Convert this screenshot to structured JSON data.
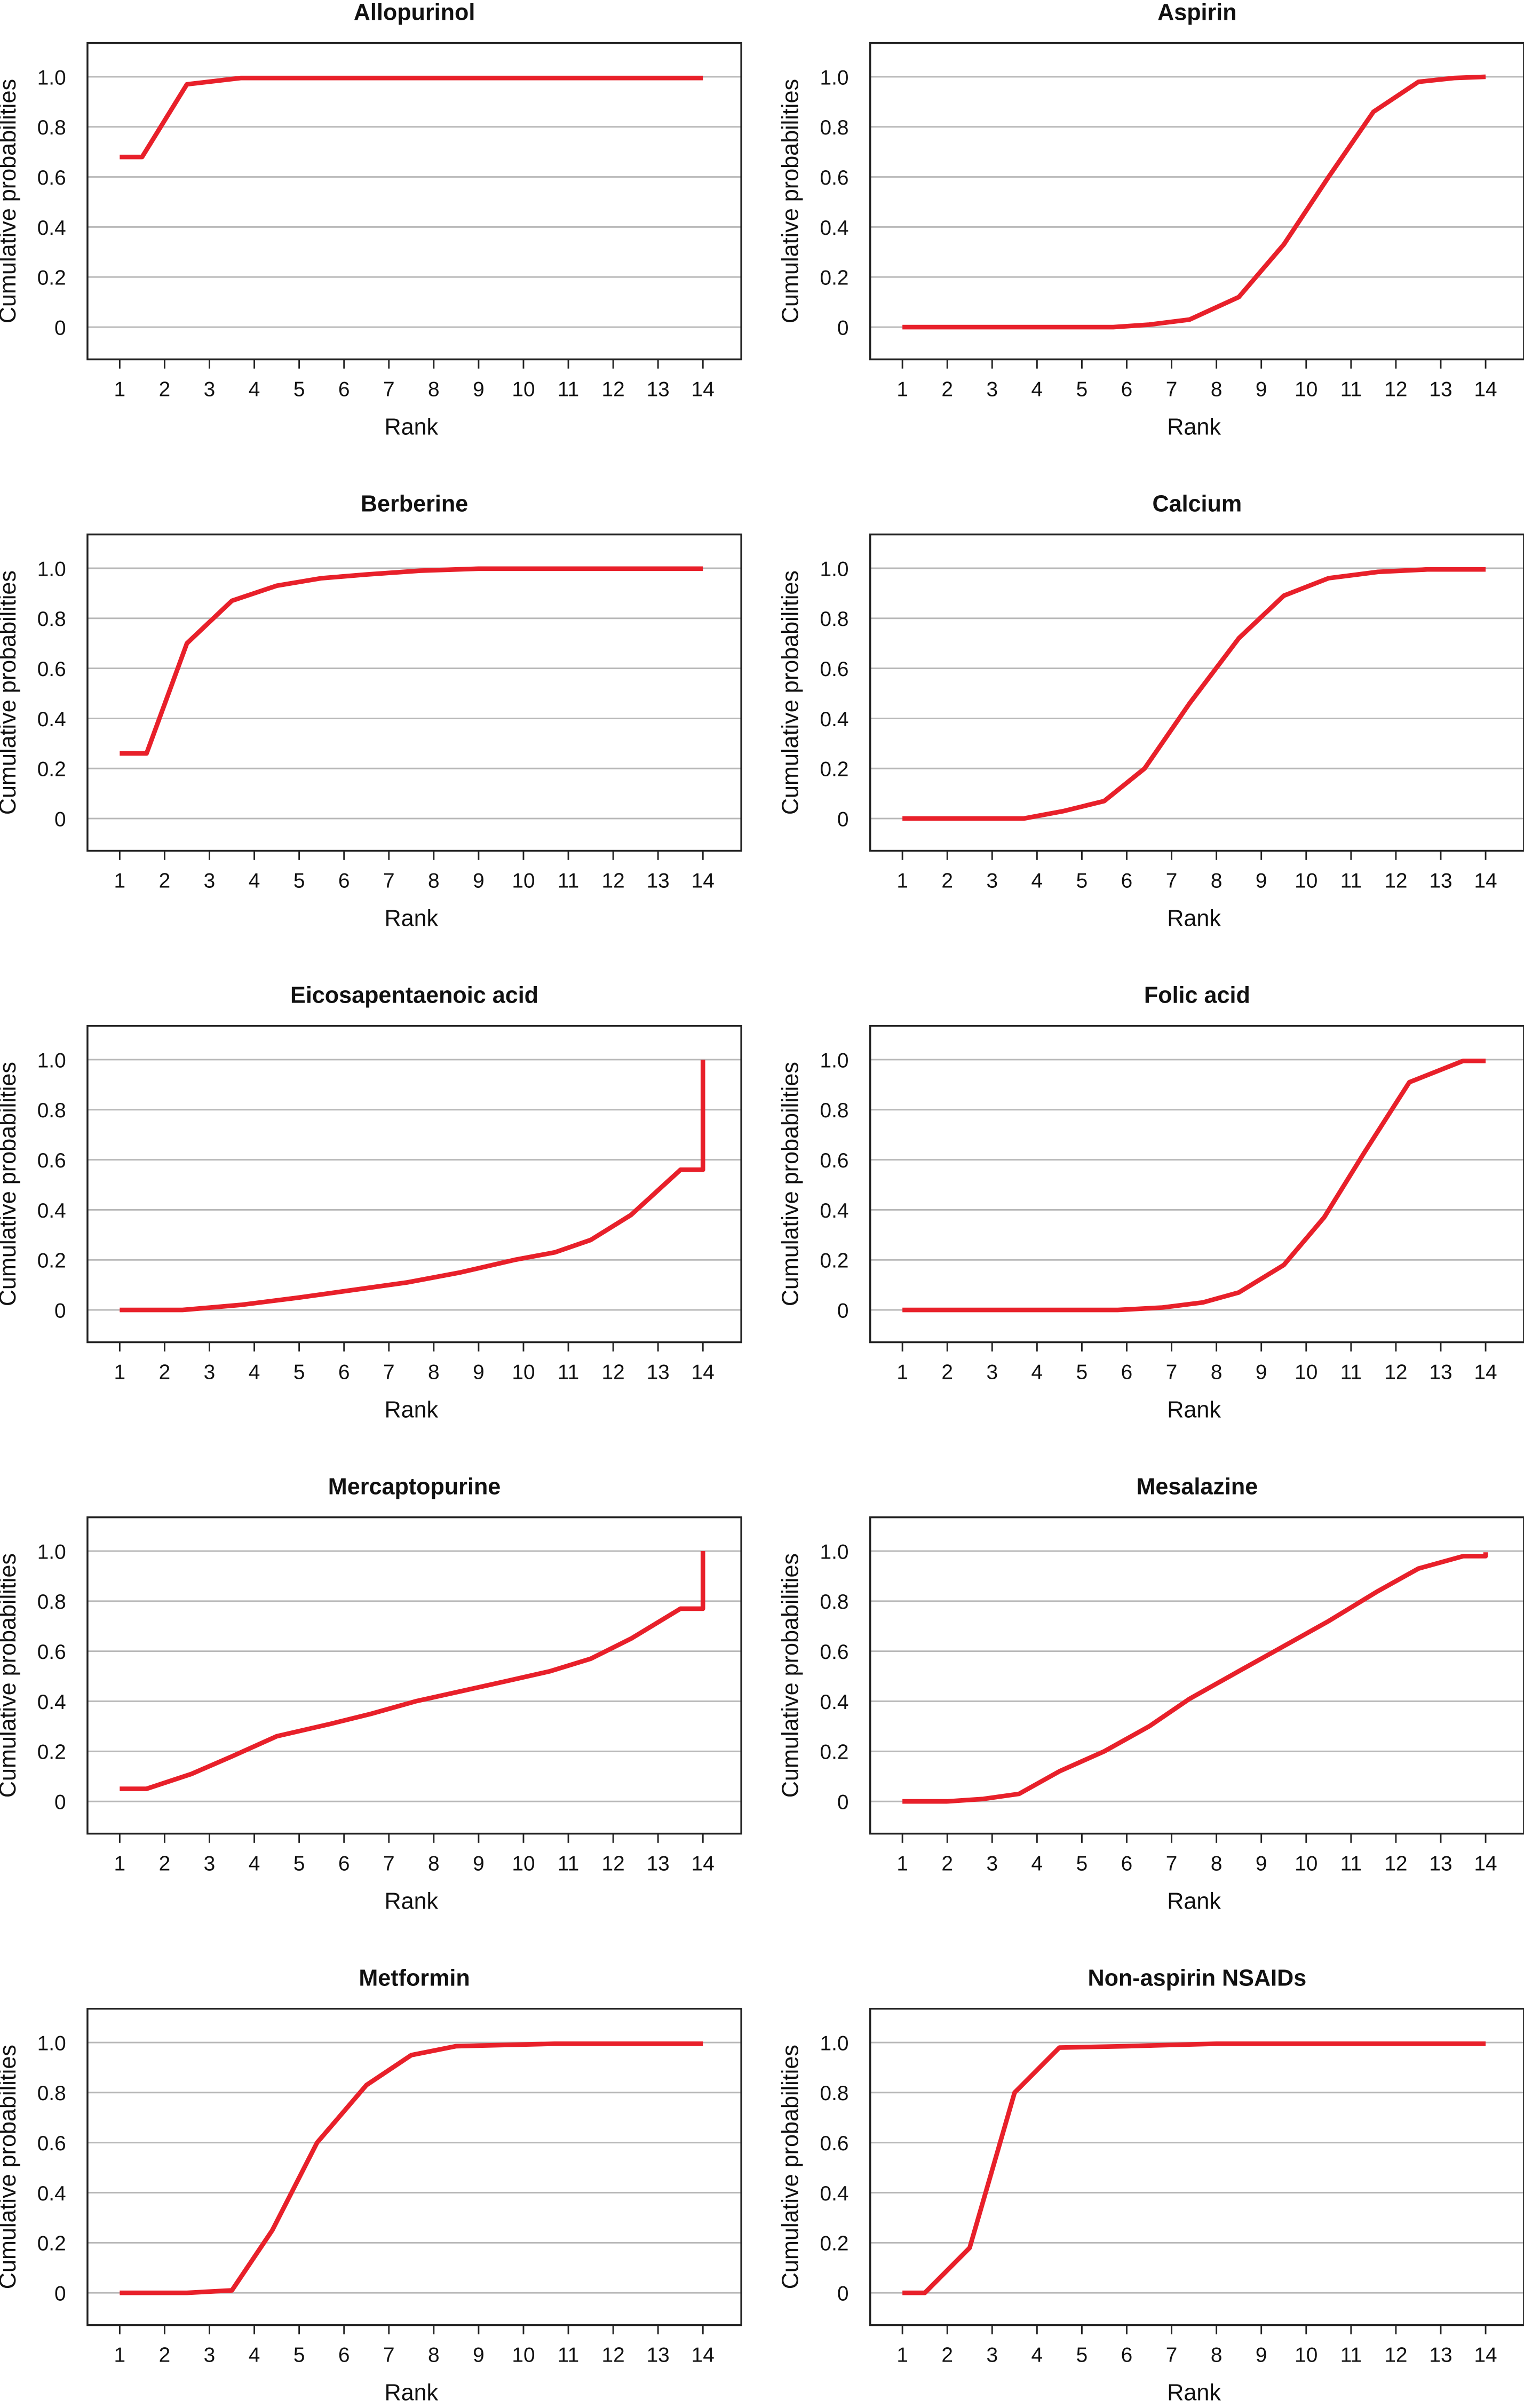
{
  "figure": {
    "x_axis_label": "Rank",
    "y_axis_label": "Cumulative probabilities",
    "line_color": "#e8202a",
    "grid_color": "#b8b8b8",
    "frame_color": "#222222"
  },
  "chart_data": [
    {
      "type": "line",
      "title": "Allopurinol",
      "xlabel": "Rank",
      "ylabel": "Cumulative probabilities",
      "xlim": [
        1,
        14
      ],
      "ylim": [
        0,
        1
      ],
      "x_ticks": [
        "1",
        "2",
        "3",
        "4",
        "5",
        "6",
        "7",
        "8",
        "9",
        "10",
        "11",
        "12",
        "13",
        "14"
      ],
      "y_ticks": [
        "0",
        "0.2",
        "0.4",
        "0.6",
        "0.8",
        "1.0"
      ],
      "grid": "horizontal",
      "series": [
        {
          "x": [
            1,
            1.5,
            2.5,
            3.7,
            14
          ],
          "y": [
            0.68,
            0.68,
            0.97,
            0.995,
            0.995
          ]
        }
      ]
    },
    {
      "type": "line",
      "title": "Aspirin",
      "xlabel": "Rank",
      "ylabel": "Cumulative probabilities",
      "xlim": [
        1,
        14
      ],
      "ylim": [
        0,
        1
      ],
      "x_ticks": [
        "1",
        "2",
        "3",
        "4",
        "5",
        "6",
        "7",
        "8",
        "9",
        "10",
        "11",
        "12",
        "13",
        "14"
      ],
      "y_ticks": [
        "0",
        "0.2",
        "0.4",
        "0.6",
        "0.8",
        "1.0"
      ],
      "grid": "horizontal",
      "series": [
        {
          "x": [
            1,
            5.7,
            6.5,
            7.4,
            8.5,
            9.5,
            10.5,
            11.5,
            12.5,
            13.3,
            14
          ],
          "y": [
            0,
            0,
            0.01,
            0.03,
            0.12,
            0.33,
            0.6,
            0.86,
            0.98,
            0.995,
            1.0
          ]
        }
      ]
    },
    {
      "type": "line",
      "title": "Berberine",
      "xlabel": "Rank",
      "ylabel": "Cumulative probabilities",
      "xlim": [
        1,
        14
      ],
      "ylim": [
        0,
        1
      ],
      "x_ticks": [
        "1",
        "2",
        "3",
        "4",
        "5",
        "6",
        "7",
        "8",
        "9",
        "10",
        "11",
        "12",
        "13",
        "14"
      ],
      "y_ticks": [
        "0",
        "0.2",
        "0.4",
        "0.6",
        "0.8",
        "1.0"
      ],
      "grid": "horizontal",
      "series": [
        {
          "x": [
            1,
            1.6,
            2.5,
            3.5,
            4.5,
            5.5,
            6.5,
            7.7,
            9,
            14
          ],
          "y": [
            0.26,
            0.26,
            0.7,
            0.87,
            0.93,
            0.96,
            0.975,
            0.99,
            0.998,
            0.998
          ]
        }
      ]
    },
    {
      "type": "line",
      "title": "Calcium",
      "xlabel": "Rank",
      "ylabel": "Cumulative probabilities",
      "xlim": [
        1,
        14
      ],
      "ylim": [
        0,
        1
      ],
      "x_ticks": [
        "1",
        "2",
        "3",
        "4",
        "5",
        "6",
        "7",
        "8",
        "9",
        "10",
        "11",
        "12",
        "13",
        "14"
      ],
      "y_ticks": [
        "0",
        "0.2",
        "0.4",
        "0.6",
        "0.8",
        "1.0"
      ],
      "grid": "horizontal",
      "series": [
        {
          "x": [
            1,
            3.7,
            4.6,
            5.5,
            6.4,
            7.4,
            8.5,
            9.5,
            10.5,
            11.6,
            12.7,
            14
          ],
          "y": [
            0,
            0,
            0.03,
            0.07,
            0.2,
            0.46,
            0.72,
            0.89,
            0.96,
            0.985,
            0.995,
            0.995
          ]
        }
      ]
    },
    {
      "type": "line",
      "title": "Eicosapentaenoic acid",
      "xlabel": "Rank",
      "ylabel": "Cumulative probabilities",
      "xlim": [
        1,
        14
      ],
      "ylim": [
        0,
        1
      ],
      "x_ticks": [
        "1",
        "2",
        "3",
        "4",
        "5",
        "6",
        "7",
        "8",
        "9",
        "10",
        "11",
        "12",
        "13",
        "14"
      ],
      "y_ticks": [
        "0",
        "0.2",
        "0.4",
        "0.6",
        "0.8",
        "1.0"
      ],
      "grid": "horizontal",
      "series": [
        {
          "x": [
            1,
            2.4,
            3.7,
            5,
            6.2,
            7.4,
            8.6,
            9.8,
            10.7,
            11.5,
            12.4,
            13.5,
            14,
            14
          ],
          "y": [
            0,
            0,
            0.02,
            0.05,
            0.08,
            0.11,
            0.15,
            0.2,
            0.23,
            0.28,
            0.38,
            0.56,
            0.56,
            1.0
          ]
        }
      ]
    },
    {
      "type": "line",
      "title": "Folic acid",
      "xlabel": "Rank",
      "ylabel": "Cumulative probabilities",
      "xlim": [
        1,
        14
      ],
      "ylim": [
        0,
        1
      ],
      "x_ticks": [
        "1",
        "2",
        "3",
        "4",
        "5",
        "6",
        "7",
        "8",
        "9",
        "10",
        "11",
        "12",
        "13",
        "14"
      ],
      "y_ticks": [
        "0",
        "0.2",
        "0.4",
        "0.6",
        "0.8",
        "1.0"
      ],
      "grid": "horizontal",
      "series": [
        {
          "x": [
            1,
            5.8,
            6.8,
            7.7,
            8.5,
            9.5,
            10.4,
            11.3,
            12.3,
            13.5,
            14
          ],
          "y": [
            0,
            0,
            0.01,
            0.03,
            0.07,
            0.18,
            0.37,
            0.63,
            0.91,
            0.995,
            0.995
          ]
        }
      ]
    },
    {
      "type": "line",
      "title": "Mercaptopurine",
      "xlabel": "Rank",
      "ylabel": "Cumulative probabilities",
      "xlim": [
        1,
        14
      ],
      "ylim": [
        0,
        1
      ],
      "x_ticks": [
        "1",
        "2",
        "3",
        "4",
        "5",
        "6",
        "7",
        "8",
        "9",
        "10",
        "11",
        "12",
        "13",
        "14"
      ],
      "y_ticks": [
        "0",
        "0.2",
        "0.4",
        "0.6",
        "0.8",
        "1.0"
      ],
      "grid": "horizontal",
      "series": [
        {
          "x": [
            1,
            1.6,
            2.6,
            3.5,
            4.5,
            5.7,
            6.6,
            7.6,
            8.6,
            9.6,
            10.6,
            11.5,
            12.4,
            13.5,
            14,
            14
          ],
          "y": [
            0.05,
            0.05,
            0.11,
            0.18,
            0.26,
            0.31,
            0.35,
            0.4,
            0.44,
            0.48,
            0.52,
            0.57,
            0.65,
            0.77,
            0.77,
            1.0
          ]
        }
      ]
    },
    {
      "type": "line",
      "title": "Mesalazine",
      "xlabel": "Rank",
      "ylabel": "Cumulative probabilities",
      "xlim": [
        1,
        14
      ],
      "ylim": [
        0,
        1
      ],
      "x_ticks": [
        "1",
        "2",
        "3",
        "4",
        "5",
        "6",
        "7",
        "8",
        "9",
        "10",
        "11",
        "12",
        "13",
        "14"
      ],
      "y_ticks": [
        "0",
        "0.2",
        "0.4",
        "0.6",
        "0.8",
        "1.0"
      ],
      "grid": "horizontal",
      "series": [
        {
          "x": [
            1,
            2,
            2.8,
            3.6,
            4.5,
            5.5,
            6.5,
            7.4,
            8.5,
            9.5,
            10.5,
            11.6,
            12.5,
            13.5,
            14,
            14
          ],
          "y": [
            0,
            0,
            0.01,
            0.03,
            0.12,
            0.2,
            0.3,
            0.41,
            0.52,
            0.62,
            0.72,
            0.84,
            0.93,
            0.98,
            0.98,
            0.995
          ]
        }
      ]
    },
    {
      "type": "line",
      "title": "Metformin",
      "xlabel": "Rank",
      "ylabel": "Cumulative probabilities",
      "xlim": [
        1,
        14
      ],
      "ylim": [
        0,
        1
      ],
      "x_ticks": [
        "1",
        "2",
        "3",
        "4",
        "5",
        "6",
        "7",
        "8",
        "9",
        "10",
        "11",
        "12",
        "13",
        "14"
      ],
      "y_ticks": [
        "0",
        "0.2",
        "0.4",
        "0.6",
        "0.8",
        "1.0"
      ],
      "grid": "horizontal",
      "series": [
        {
          "x": [
            1,
            2.5,
            3.5,
            4.4,
            5.4,
            6.5,
            7.5,
            8.5,
            10.7,
            14
          ],
          "y": [
            0,
            0,
            0.01,
            0.25,
            0.6,
            0.83,
            0.95,
            0.985,
            0.995,
            0.995
          ]
        }
      ]
    },
    {
      "type": "line",
      "title": "Non-aspirin NSAIDs",
      "xlabel": "Rank",
      "ylabel": "Cumulative probabilities",
      "xlim": [
        1,
        14
      ],
      "ylim": [
        0,
        1
      ],
      "x_ticks": [
        "1",
        "2",
        "3",
        "4",
        "5",
        "6",
        "7",
        "8",
        "9",
        "10",
        "11",
        "12",
        "13",
        "14"
      ],
      "y_ticks": [
        "0",
        "0.2",
        "0.4",
        "0.6",
        "0.8",
        "1.0"
      ],
      "grid": "horizontal",
      "series": [
        {
          "x": [
            1,
            1.5,
            2.5,
            3.5,
            4.5,
            6,
            8,
            14
          ],
          "y": [
            0,
            0,
            0.18,
            0.8,
            0.98,
            0.985,
            0.995,
            0.995
          ]
        }
      ]
    }
  ]
}
